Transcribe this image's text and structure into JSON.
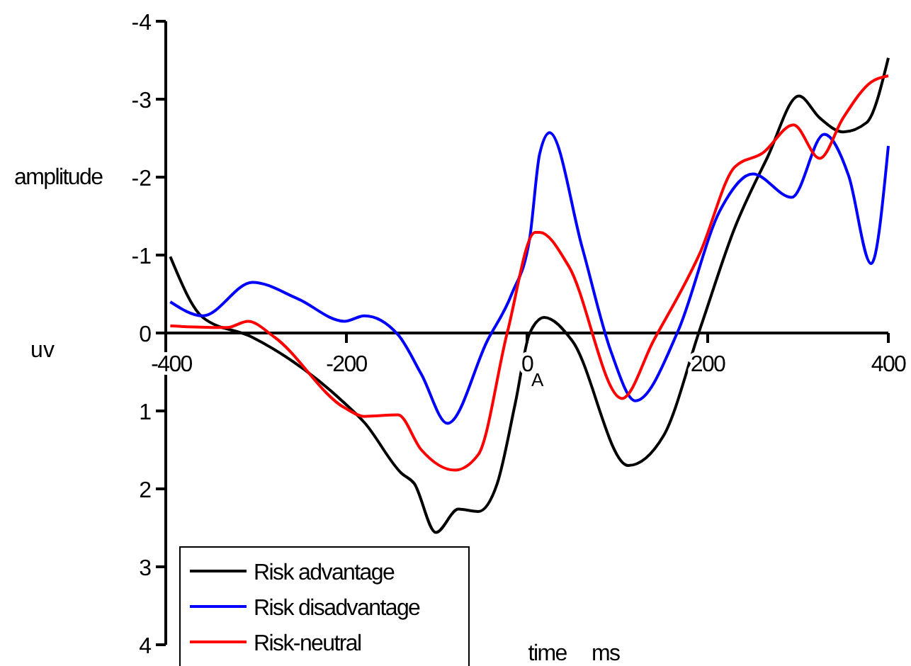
{
  "chart_data": {
    "type": "line",
    "xlabel": "time ms",
    "ylabel": "amplitude",
    "xlim": [
      -400,
      400
    ],
    "xticks": [
      -400,
      -200,
      0,
      200,
      400
    ],
    "ylim": [
      4,
      -4
    ],
    "yticks": [
      -4,
      -3,
      -2,
      -1,
      0,
      1,
      2,
      3,
      4
    ],
    "legend": "bottom left",
    "annotations": [
      "uv",
      {
        "text": "A",
        "x": 0,
        "y": 0.5
      }
    ],
    "series": [
      {
        "name": "Risk advantage",
        "color": "#000000",
        "x": [
          -395,
          -359,
          -305,
          -202,
          -180,
          -139,
          -125,
          -101,
          -76,
          -54,
          -33,
          -13,
          3,
          19,
          50,
          112,
          151,
          192,
          230,
          266,
          301,
          324,
          350,
          376,
          400
        ],
        "values": [
          -0.98,
          -0.2,
          0.05,
          0.9,
          1.15,
          1.8,
          1.93,
          2.56,
          2.26,
          2.29,
          1.93,
          0.9,
          0,
          -0.2,
          0.1,
          1.7,
          1.32,
          -0.07,
          -1.35,
          -2.25,
          -3.04,
          -2.76,
          -2.58,
          -2.7,
          -3.53
        ]
      },
      {
        "name": "Risk disadvantage",
        "color": "#0000ff",
        "x": [
          -395,
          -359,
          -304,
          -254,
          -202,
          -180,
          -143,
          -117,
          -88,
          -44,
          -17,
          3,
          14,
          25,
          61,
          93,
          120,
          167,
          214,
          250,
          293,
          329,
          356,
          381,
          400
        ],
        "values": [
          -0.4,
          -0.22,
          -0.65,
          -0.44,
          -0.15,
          -0.22,
          0.02,
          0.53,
          1.16,
          0.1,
          -0.5,
          -1.22,
          -2.3,
          -2.57,
          -1.1,
          0.24,
          0.87,
          -0.02,
          -1.58,
          -2.04,
          -1.74,
          -2.55,
          -2.02,
          -0.89,
          -2.4
        ]
      },
      {
        "name": "Risk-neutral",
        "color": "#ff0000",
        "x": [
          -395,
          -332,
          -309,
          -280,
          -202,
          -180,
          -143,
          -117,
          -80,
          -54,
          -22,
          9,
          14,
          46,
          105,
          140,
          192,
          230,
          261,
          295,
          324,
          350,
          381,
          400
        ],
        "values": [
          -0.09,
          -0.07,
          -0.15,
          0.05,
          0.96,
          1.07,
          1.05,
          1.5,
          1.76,
          1.56,
          0,
          -1.29,
          -1.29,
          -0.86,
          0.84,
          0.1,
          -1.04,
          -2.13,
          -2.31,
          -2.67,
          -2.24,
          -2.76,
          -3.22,
          -3.3
        ]
      }
    ]
  }
}
